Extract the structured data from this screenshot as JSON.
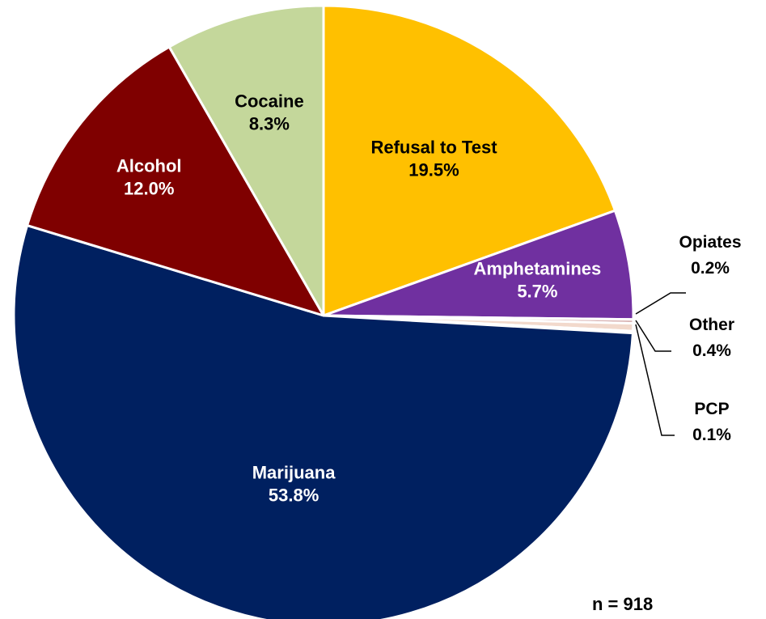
{
  "chart_data": {
    "type": "pie",
    "title": "",
    "slices": [
      {
        "label": "Refusal to Test",
        "value": 19.5,
        "display": "19.5%",
        "color": "#FFC000",
        "text_color": "#000000"
      },
      {
        "label": "Amphetamines",
        "value": 5.7,
        "display": "5.7%",
        "color": "#7030A0",
        "text_color": "#FFFFFF"
      },
      {
        "label": "Opiates",
        "value": 0.2,
        "display": "0.2%",
        "color": "#D9B3B3",
        "text_color": "#000000"
      },
      {
        "label": "Other",
        "value": 0.4,
        "display": "0.4%",
        "color": "#F2D9CC",
        "text_color": "#000000"
      },
      {
        "label": "PCP",
        "value": 0.1,
        "display": "0.1%",
        "color": "#C0C0C0",
        "text_color": "#000000"
      },
      {
        "label": "Marijuana",
        "value": 53.8,
        "display": "53.8%",
        "color": "#002060",
        "text_color": "#FFFFFF"
      },
      {
        "label": "Alcohol",
        "value": 12.0,
        "display": "12.0%",
        "color": "#7F0000",
        "text_color": "#FFFFFF"
      },
      {
        "label": "Cocaine",
        "value": 8.3,
        "display": "8.3%",
        "color": "#C4D79B",
        "text_color": "#000000"
      }
    ],
    "sample_size": "n = 918"
  }
}
